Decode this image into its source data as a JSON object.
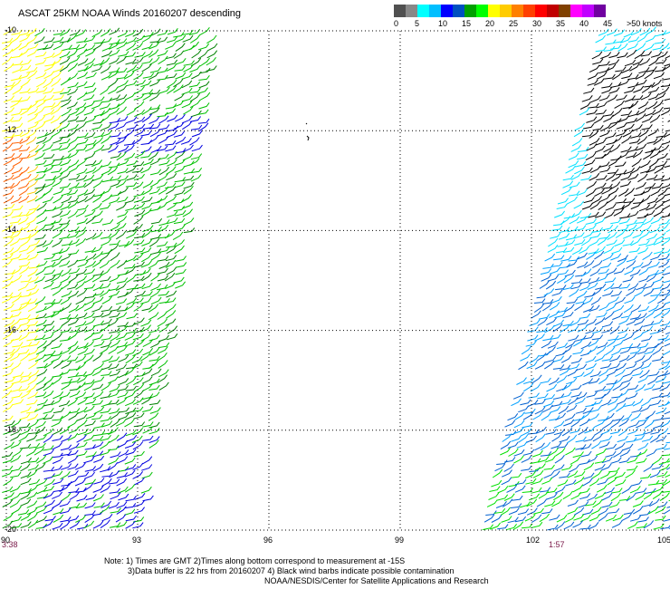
{
  "header": {
    "title": "ASCAT 25KM NOAA Winds 20160207 descending"
  },
  "color_scale": {
    "colors": [
      "#505050",
      "#888888",
      "#00ffff",
      "#00bfff",
      "#0000ff",
      "#0050c0",
      "#00a000",
      "#00ff00",
      "#ffff00",
      "#ffcc00",
      "#ff8000",
      "#ff4000",
      "#ff0000",
      "#c00000",
      "#804000",
      "#ff00ff",
      "#c000ff",
      "#7000a0"
    ],
    "labels": [
      "0",
      "5",
      "10",
      "15",
      "20",
      "25",
      "30",
      "35",
      "40",
      "45",
      ">50 knots"
    ],
    "unit": "knots"
  },
  "map": {
    "x_ticks": [
      "90",
      "93",
      "96",
      "99",
      "102",
      "105"
    ],
    "y_ticks": [
      "-10",
      "-12",
      "-14",
      "-16",
      "-18",
      "-20"
    ],
    "x_range": [
      90,
      105
    ],
    "y_range": [
      -20,
      -10
    ],
    "grid": "dotted"
  },
  "pass_times": {
    "left": "3:38",
    "right": "1:57"
  },
  "notes": {
    "line1": "Note: 1) Times are GMT 2)Times along bottom correspond to measurement at -15S",
    "line2": "3)Data buffer is 22 hrs from 20160207 4) Black wind barbs indicate possible contamination",
    "line3": "NOAA/NESDIS/Center for Satellite Applications and Research"
  }
}
